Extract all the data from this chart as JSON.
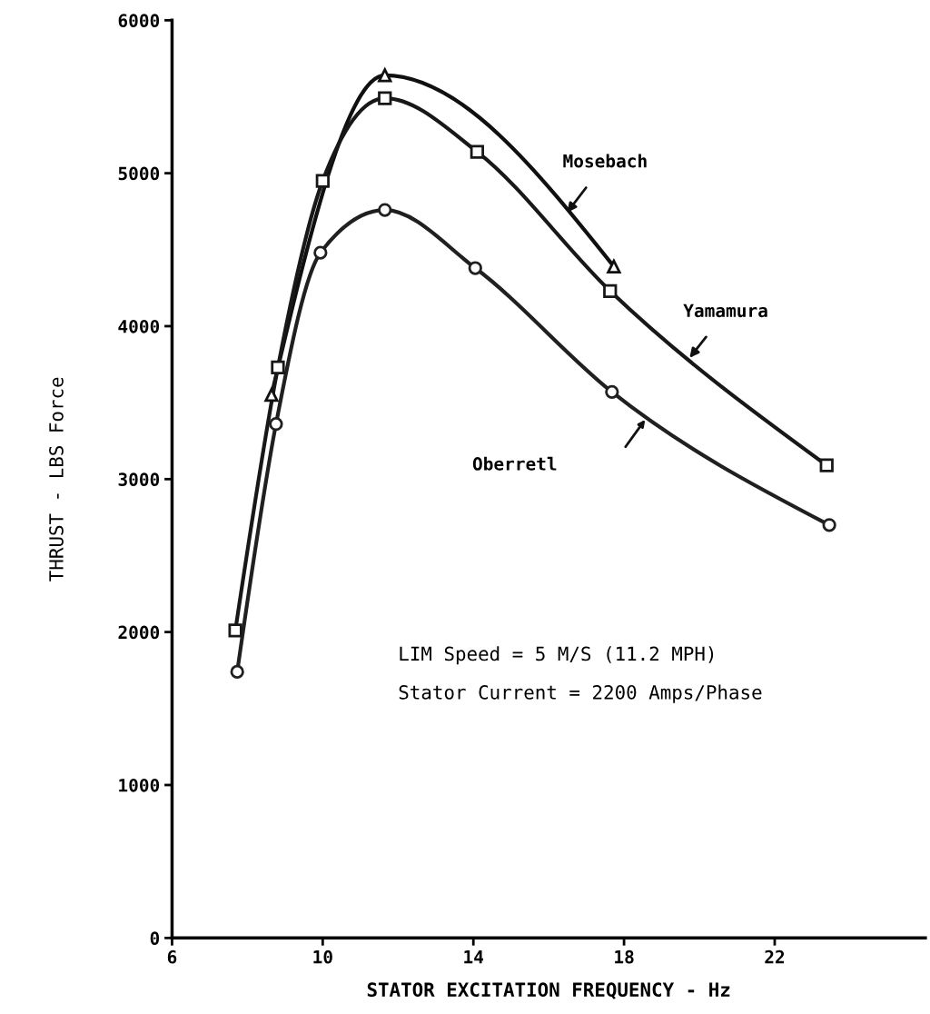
{
  "chart_data": {
    "type": "line",
    "xlabel": "STATOR EXCITATION FREQUENCY - Hz",
    "ylabel": "THRUST - LBS Force",
    "xlim": [
      6,
      26
    ],
    "ylim": [
      0,
      6000
    ],
    "xticks": [
      6,
      10,
      14,
      18,
      22
    ],
    "yticks": [
      0,
      1000,
      2000,
      3000,
      4000,
      5000,
      6000
    ],
    "grid": false,
    "legend": false,
    "line_style": "solid",
    "series": [
      {
        "color": "#101010",
        "marker": "triangle",
        "x": [
          8.64,
          11.65,
          17.73
        ],
        "values": [
          3550,
          5640,
          4390
        ]
      },
      {
        "color": "#181818",
        "marker": "square",
        "x": [
          7.68,
          8.81,
          10.0,
          11.65,
          14.1,
          17.63,
          23.38
        ],
        "values": [
          2010,
          3730,
          4950,
          5490,
          5140,
          4230,
          3090
        ]
      },
      {
        "color": "#202020",
        "marker": "circle",
        "x": [
          7.73,
          8.76,
          9.94,
          11.65,
          14.05,
          17.68,
          23.45
        ],
        "values": [
          1740,
          3360,
          4480,
          4760,
          4380,
          3570,
          2700
        ]
      }
    ],
    "annotations": [
      {
        "text": "Mosebach",
        "x": 16.45,
        "y": 4730
      },
      {
        "text": "Yamamura",
        "x": 19.7,
        "y": 3780
      },
      "Oberretl",
      "LIM Speed = 5 M/S (11.2 MPH)",
      "Stator Current = 2200 Amps/Phase"
    ]
  }
}
